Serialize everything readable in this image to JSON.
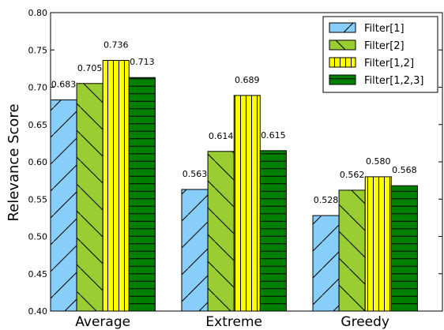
{
  "chart_data": {
    "type": "bar",
    "categories": [
      "Average",
      "Extreme",
      "Greedy"
    ],
    "series": [
      {
        "name": "Filter[1]",
        "values": [
          0.683,
          0.563,
          0.528
        ],
        "color": "#87cefa",
        "hatch": "diagonal-forward"
      },
      {
        "name": "Filter[2]",
        "values": [
          0.705,
          0.614,
          0.562
        ],
        "color": "#9acd32",
        "hatch": "diagonal-back"
      },
      {
        "name": "Filter[1,2]",
        "values": [
          0.736,
          0.689,
          0.58
        ],
        "color": "#ffff00",
        "hatch": "vertical"
      },
      {
        "name": "Filter[1,2,3]",
        "values": [
          0.713,
          0.615,
          0.568
        ],
        "color": "#008000",
        "hatch": "horizontal"
      }
    ],
    "data_labels": [
      [
        "0.683",
        "0.563",
        "0.528"
      ],
      [
        "0.705",
        "0.614",
        "0.562"
      ],
      [
        "0.736",
        "0.689",
        "0.580"
      ],
      [
        "0.713",
        "0.615",
        "0.568"
      ]
    ],
    "ylabel": "Relevance Score",
    "ylim": [
      0.4,
      0.8
    ],
    "yticks": [
      "0.40",
      "0.45",
      "0.50",
      "0.55",
      "0.60",
      "0.65",
      "0.70",
      "0.75",
      "0.80"
    ],
    "legend_position": "top-right",
    "grid": false
  }
}
